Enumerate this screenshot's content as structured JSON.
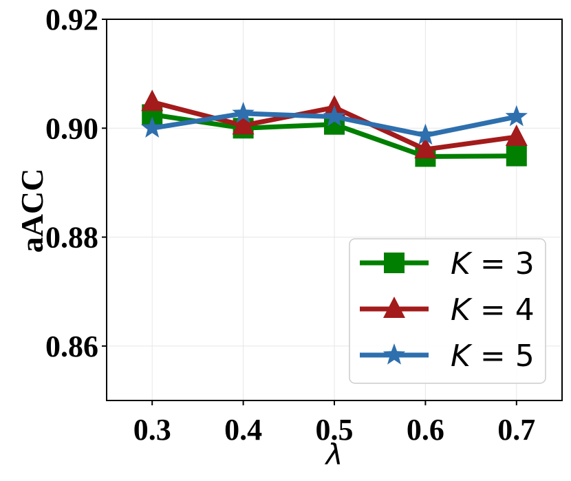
{
  "chart_data": {
    "type": "line",
    "xlabel": "λ",
    "ylabel": "aACC",
    "x": [
      0.3,
      0.4,
      0.5,
      0.6,
      0.7
    ],
    "x_tick_labels": [
      "0.3",
      "0.4",
      "0.5",
      "0.6",
      "0.7"
    ],
    "xlim": [
      0.25,
      0.75
    ],
    "ylim": [
      0.85,
      0.92
    ],
    "y_ticks": [
      0.86,
      0.88,
      0.9,
      0.92
    ],
    "y_tick_labels": [
      "0.86",
      "0.88",
      "0.90",
      "0.92"
    ],
    "grid": true,
    "legend_position": "bottom-right",
    "series": [
      {
        "name_var": "K",
        "name_value": "3",
        "color": "#007f00",
        "marker": "square",
        "values": [
          0.9025,
          0.9,
          0.9007,
          0.8948,
          0.8949
        ]
      },
      {
        "name_var": "K",
        "name_value": "4",
        "color": "#a31b1b",
        "marker": "triangle",
        "values": [
          0.9048,
          0.9005,
          0.9038,
          0.8961,
          0.8984
        ]
      },
      {
        "name_var": "K",
        "name_value": "5",
        "color": "#2e6fae",
        "marker": "star",
        "values": [
          0.9,
          0.9027,
          0.9021,
          0.8987,
          0.9021
        ]
      }
    ]
  }
}
